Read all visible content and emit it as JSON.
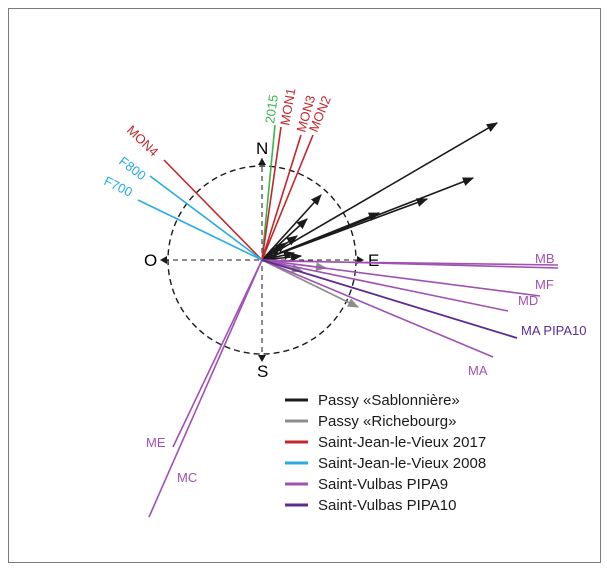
{
  "compass": {
    "north": "N",
    "south": "S",
    "east": "E",
    "west": "O"
  },
  "colors": {
    "black": "#1a1a1a",
    "grey": "#8c8c8c",
    "red": "#c1272d",
    "cyan": "#29abe2",
    "purple": "#a052b4",
    "dark_purple": "#5c2d91",
    "green": "#39b54a"
  },
  "line_labels": {
    "l2015": "2015",
    "mon1": "MON1",
    "mon2": "MON2",
    "mon3": "MON3",
    "mon4": "MON4",
    "f800": "F800",
    "f700": "F700",
    "mb": "MB",
    "mf": "MF",
    "md": "MD",
    "ma_pipa10": "MA PIPA10",
    "ma": "MA",
    "me": "ME",
    "mc": "MC"
  },
  "legend": [
    {
      "label": "Passy «Sablonnière»",
      "color": "#1a1a1a"
    },
    {
      "label": "Passy «Richebourg»",
      "color": "#8c8c8c"
    },
    {
      "label": "Saint-Jean-le-Vieux 2017",
      "color": "#c1272d"
    },
    {
      "label": "Saint-Jean-le-Vieux 2008",
      "color": "#29abe2"
    },
    {
      "label": "Saint-Vulbas PIPA9",
      "color": "#a052b4"
    },
    {
      "label": "Saint-Vulbas PIPA10",
      "color": "#5c2d91"
    }
  ]
}
